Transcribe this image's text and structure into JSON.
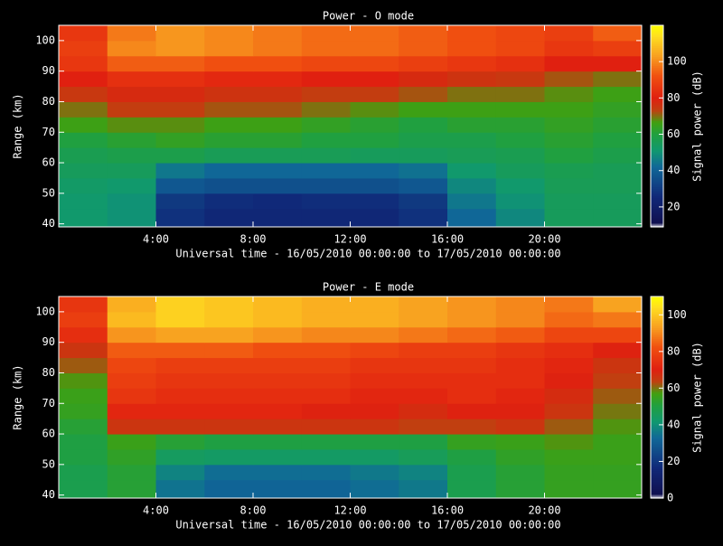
{
  "chart_data": [
    {
      "type": "heatmap",
      "title": "Power - O mode",
      "xlabel": "Universal time - 16/05/2010 00:00:00 to 17/05/2010 00:00:00",
      "ylabel": "Range (km)",
      "colorbar_label": "Signal power (dB)",
      "xbins": [
        0,
        2,
        4,
        6,
        8,
        10,
        12,
        14,
        16,
        18,
        20,
        22,
        24
      ],
      "ybins": [
        39,
        45,
        50,
        55,
        60,
        65,
        70,
        75,
        80,
        85,
        90,
        95,
        100,
        105
      ],
      "xlim": [
        0,
        24
      ],
      "ylim": [
        39,
        105
      ],
      "zlim": [
        9,
        120
      ],
      "xticks": [
        {
          "value": 4,
          "label": "4:00"
        },
        {
          "value": 8,
          "label": "8:00"
        },
        {
          "value": 12,
          "label": "12:00"
        },
        {
          "value": 16,
          "label": "16:00"
        },
        {
          "value": 20,
          "label": "20:00"
        }
      ],
      "yticks": [
        40,
        50,
        60,
        70,
        80,
        90,
        100
      ],
      "zticks": [
        20,
        40,
        60,
        80,
        100
      ],
      "values": [
        [
          52,
          50,
          28,
          25,
          25,
          25,
          25,
          28,
          42,
          48,
          55,
          55
        ],
        [
          52,
          50,
          30,
          27,
          26,
          27,
          27,
          30,
          45,
          50,
          55,
          55
        ],
        [
          53,
          52,
          38,
          36,
          36,
          36,
          36,
          38,
          48,
          52,
          56,
          56
        ],
        [
          55,
          55,
          45,
          42,
          42,
          42,
          42,
          44,
          52,
          55,
          57,
          56
        ],
        [
          57,
          58,
          58,
          56,
          56,
          56,
          55,
          55,
          56,
          57,
          60,
          58
        ],
        [
          60,
          62,
          64,
          62,
          62,
          60,
          60,
          58,
          58,
          60,
          62,
          60
        ],
        [
          66,
          68,
          68,
          66,
          66,
          64,
          62,
          60,
          62,
          62,
          64,
          62
        ],
        [
          70,
          74,
          74,
          72,
          72,
          70,
          68,
          66,
          66,
          66,
          66,
          64
        ],
        [
          75,
          78,
          78,
          76,
          76,
          74,
          74,
          72,
          70,
          70,
          68,
          66
        ],
        [
          80,
          84,
          84,
          82,
          82,
          80,
          80,
          78,
          76,
          75,
          72,
          70
        ],
        [
          86,
          94,
          94,
          92,
          92,
          90,
          90,
          88,
          86,
          84,
          80,
          80
        ],
        [
          88,
          100,
          102,
          100,
          98,
          96,
          96,
          94,
          92,
          90,
          86,
          88
        ],
        [
          86,
          98,
          102,
          100,
          98,
          96,
          96,
          94,
          92,
          90,
          88,
          94
        ]
      ]
    },
    {
      "type": "heatmap",
      "title": "Power - E mode",
      "xlabel": "Universal time - 16/05/2010 00:00:00 to 17/05/2010 00:00:00",
      "ylabel": "Range (km)",
      "colorbar_label": "Signal power (dB)",
      "xbins": [
        0,
        2,
        4,
        6,
        8,
        10,
        12,
        14,
        16,
        18,
        20,
        22,
        24
      ],
      "ybins": [
        39,
        45,
        50,
        55,
        60,
        65,
        70,
        75,
        80,
        85,
        90,
        95,
        100,
        105
      ],
      "xlim": [
        0,
        24
      ],
      "ylim": [
        39,
        105
      ],
      "zlim": [
        0,
        110
      ],
      "xticks": [
        {
          "value": 4,
          "label": "4:00"
        },
        {
          "value": 8,
          "label": "8:00"
        },
        {
          "value": 12,
          "label": "12:00"
        },
        {
          "value": 16,
          "label": "16:00"
        },
        {
          "value": 20,
          "label": "20:00"
        }
      ],
      "yticks": [
        40,
        50,
        60,
        70,
        80,
        90,
        100
      ],
      "zticks": [
        0,
        20,
        40,
        60,
        80,
        100
      ],
      "values": [
        [
          48,
          52,
          35,
          32,
          32,
          32,
          34,
          36,
          48,
          52,
          55,
          55
        ],
        [
          48,
          52,
          38,
          34,
          34,
          34,
          36,
          38,
          48,
          52,
          55,
          55
        ],
        [
          50,
          54,
          45,
          44,
          44,
          44,
          44,
          46,
          50,
          54,
          56,
          56
        ],
        [
          50,
          56,
          52,
          50,
          50,
          50,
          50,
          50,
          55,
          56,
          58,
          56
        ],
        [
          52,
          66,
          66,
          66,
          66,
          66,
          66,
          64,
          64,
          66,
          62,
          58
        ],
        [
          55,
          72,
          72,
          72,
          72,
          70,
          70,
          68,
          70,
          70,
          66,
          60
        ],
        [
          56,
          76,
          74,
          74,
          74,
          74,
          72,
          72,
          74,
          72,
          68,
          62
        ],
        [
          58,
          78,
          76,
          76,
          76,
          76,
          74,
          74,
          74,
          74,
          70,
          64
        ],
        [
          62,
          80,
          78,
          78,
          78,
          78,
          76,
          76,
          76,
          74,
          72,
          66
        ],
        [
          66,
          84,
          84,
          84,
          82,
          82,
          80,
          78,
          78,
          76,
          74,
          70
        ],
        [
          74,
          92,
          94,
          94,
          92,
          90,
          90,
          88,
          86,
          84,
          80,
          80
        ],
        [
          78,
          98,
          102,
          100,
          98,
          96,
          96,
          94,
          92,
          90,
          86,
          88
        ],
        [
          76,
          96,
          102,
          100,
          98,
          96,
          96,
          94,
          92,
          90,
          88,
          94
        ]
      ]
    }
  ]
}
